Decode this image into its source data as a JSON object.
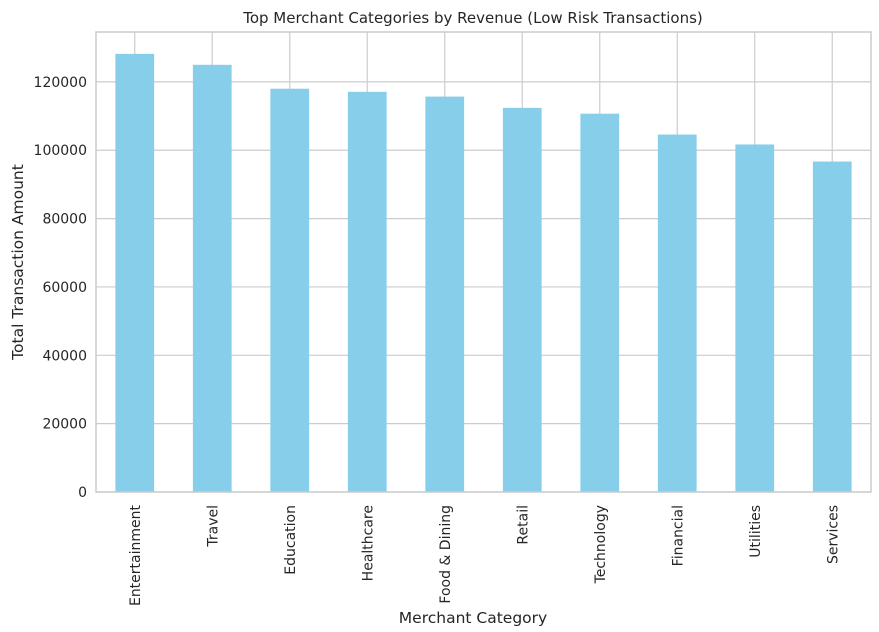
{
  "chart_data": {
    "type": "bar",
    "title": "Top Merchant Categories by Revenue (Low Risk Transactions)",
    "xlabel": "Merchant Category",
    "ylabel": "Total Transaction Amount",
    "categories": [
      "Entertainment",
      "Travel",
      "Education",
      "Healthcare",
      "Food & Dining",
      "Retail",
      "Technology",
      "Financial",
      "Utilities",
      "Services"
    ],
    "values": [
      128200,
      125000,
      118000,
      117100,
      115700,
      112400,
      110700,
      104600,
      101700,
      96700
    ],
    "ylim": [
      0,
      134600
    ],
    "yticks": [
      0,
      20000,
      40000,
      60000,
      80000,
      100000,
      120000
    ],
    "grid": true,
    "bar_color": "#87ceeb",
    "grid_color": "#cccccc",
    "axis_color": "#cccccc"
  }
}
